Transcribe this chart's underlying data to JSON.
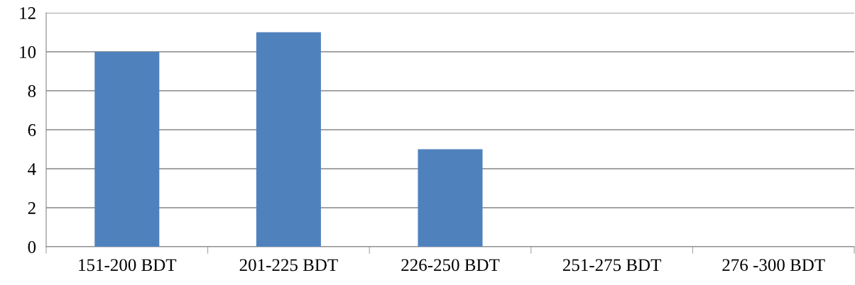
{
  "chart_data": {
    "type": "bar",
    "categories": [
      "151-200 BDT",
      "201-225 BDT",
      "226-250 BDT",
      "251-275 BDT",
      "276 -300 BDT"
    ],
    "values": [
      10,
      11,
      5,
      0,
      0
    ],
    "color": "#4f81bd",
    "ylim": [
      0,
      12
    ],
    "yticks": [
      0,
      2,
      4,
      6,
      8,
      10,
      12
    ],
    "grid": "y"
  }
}
